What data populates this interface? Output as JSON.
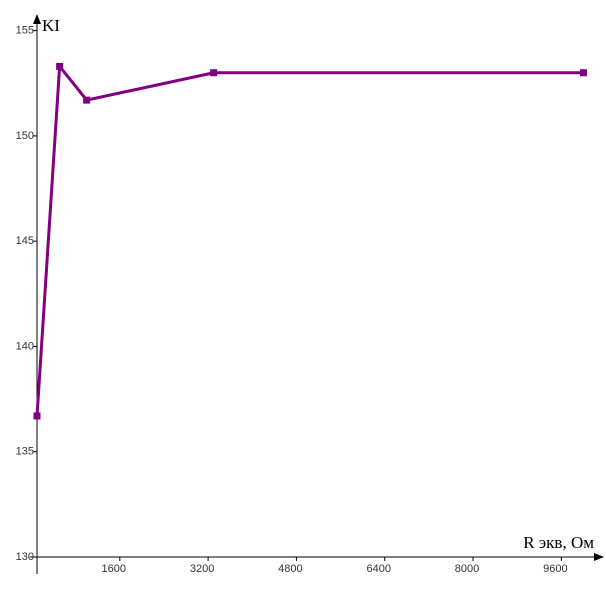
{
  "chart_data": {
    "type": "line",
    "x_label": "R экв, Ом",
    "y_label": "KI",
    "x": [
      100,
      510,
      1000,
      3300,
      10000
    ],
    "series": [
      {
        "name": "KI",
        "color": "#800080",
        "values": [
          136.7,
          153.3,
          151.7,
          153,
          153
        ]
      }
    ],
    "xlim": [
      100,
      10300
    ],
    "xticks": [
      1600,
      3200,
      4800,
      6400,
      8000,
      9600
    ],
    "ylim": [
      130,
      155.6
    ],
    "yticks": [
      130,
      135,
      140,
      145,
      150,
      155
    ],
    "grid": false
  }
}
